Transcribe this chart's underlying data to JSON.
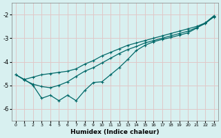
{
  "xlabel": "Humidex (Indice chaleur)",
  "bg_color": "#d8f0f0",
  "grid_color": "#e0c8c8",
  "line_color": "#006868",
  "xlim": [
    -0.5,
    23.5
  ],
  "ylim": [
    -6.5,
    -1.5
  ],
  "yticks": [
    -6,
    -5,
    -4,
    -3,
    -2
  ],
  "xticks": [
    0,
    1,
    2,
    3,
    4,
    5,
    6,
    7,
    8,
    9,
    10,
    11,
    12,
    13,
    14,
    15,
    16,
    17,
    18,
    19,
    20,
    21,
    22,
    23
  ],
  "series1_x": [
    0,
    1,
    2,
    3,
    4,
    5,
    6,
    7,
    8,
    9,
    10,
    11,
    12,
    13,
    14,
    15,
    16,
    17,
    18,
    19,
    20,
    21,
    22,
    23
  ],
  "series1_y": [
    -4.55,
    -4.75,
    -4.65,
    -4.55,
    -4.5,
    -4.45,
    -4.4,
    -4.3,
    -4.1,
    -3.95,
    -3.75,
    -3.6,
    -3.45,
    -3.3,
    -3.2,
    -3.1,
    -3.0,
    -2.9,
    -2.8,
    -2.7,
    -2.6,
    -2.5,
    -2.35,
    -2.05
  ],
  "series2_x": [
    0,
    1,
    2,
    3,
    4,
    5,
    6,
    7,
    8,
    9,
    10,
    11,
    12,
    13,
    14,
    15,
    16,
    17,
    18,
    19,
    20,
    21,
    22,
    23
  ],
  "series2_y": [
    -4.55,
    -4.78,
    -4.95,
    -5.05,
    -5.1,
    -5.0,
    -4.85,
    -4.62,
    -4.4,
    -4.25,
    -4.05,
    -3.85,
    -3.65,
    -3.48,
    -3.35,
    -3.2,
    -3.1,
    -3.0,
    -2.9,
    -2.8,
    -2.7,
    -2.55,
    -2.38,
    -2.08
  ],
  "series3_x": [
    1,
    2,
    3,
    4,
    5,
    6,
    7,
    8,
    9,
    10,
    11,
    12,
    13,
    14,
    15,
    16,
    17,
    18,
    19,
    20,
    21,
    22,
    23
  ],
  "series3_y": [
    -4.75,
    -5.0,
    -5.55,
    -5.42,
    -5.65,
    -5.42,
    -5.65,
    -5.22,
    -4.88,
    -4.85,
    -4.55,
    -4.25,
    -3.9,
    -3.52,
    -3.3,
    -3.15,
    -3.05,
    -2.97,
    -2.87,
    -2.77,
    -2.57,
    -2.35,
    -2.1
  ]
}
